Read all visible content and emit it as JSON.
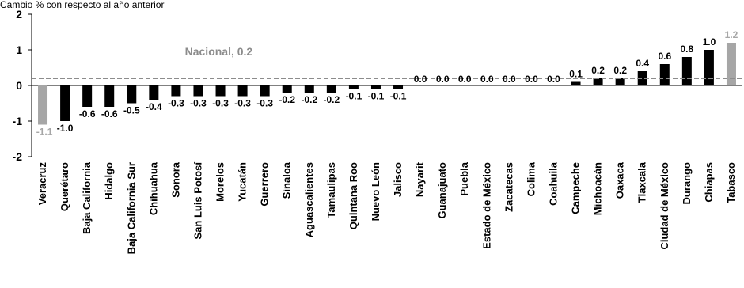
{
  "chart_data": {
    "type": "bar",
    "subtitle": "Cambio % con respecto al año anterior",
    "categories": [
      "Veracruz",
      "Querétaro",
      "Baja California",
      "Hidalgo",
      "Baja California Sur",
      "Chihuahua",
      "Sonora",
      "San Luis Potosí",
      "Morelos",
      "Yucatán",
      "Guerrero",
      "Sinaloa",
      "Aguascalientes",
      "Tamaulipas",
      "Quintana Roo",
      "Nuevo León",
      "Jalisco",
      "Nayarit",
      "Guanajuato",
      "Puebla",
      "Estado de México",
      "Zacatecas",
      "Colima",
      "Coahuila",
      "Campeche",
      "Michoacán",
      "Oaxaca",
      "Tlaxcala",
      "Ciudad de México",
      "Durango",
      "Chiapas",
      "Tabasco"
    ],
    "values": [
      -1.1,
      -1.0,
      -0.6,
      -0.6,
      -0.5,
      -0.4,
      -0.3,
      -0.3,
      -0.3,
      -0.3,
      -0.3,
      -0.2,
      -0.2,
      -0.2,
      -0.1,
      -0.1,
      -0.1,
      0.0,
      0.0,
      0.0,
      0.0,
      0.0,
      0.0,
      0.0,
      0.1,
      0.2,
      0.2,
      0.4,
      0.6,
      0.8,
      1.0,
      1.2
    ],
    "labels": [
      "-1.1",
      "-1.0",
      "-0.6",
      "-0.6",
      "-0.5",
      "-0.4",
      "-0.3",
      "-0.3",
      "-0.3",
      "-0.3",
      "-0.3",
      "-0.2",
      "-0.2",
      "-0.2",
      "-0.1",
      "-0.1",
      "-0.1",
      "0.0",
      "0.0",
      "0.0",
      "0.0",
      "0.0",
      "0.0",
      "0.0",
      "0.1",
      "0.2",
      "0.2",
      "0.4",
      "0.6",
      "0.8",
      "1.0",
      "1.2"
    ],
    "highlight": [
      "Veracruz",
      "Tabasco"
    ],
    "reference_line": {
      "label": "Nacional, 0.2",
      "value": 0.2
    },
    "ylim": [
      -2,
      2
    ],
    "yticks": [
      "-2",
      "-1",
      "0",
      "1",
      "2"
    ],
    "colors": {
      "bar": "#000000",
      "highlight": "#a6a6a6",
      "reference": "#8c8c8c"
    },
    "xlabel": "",
    "ylabel": ""
  }
}
